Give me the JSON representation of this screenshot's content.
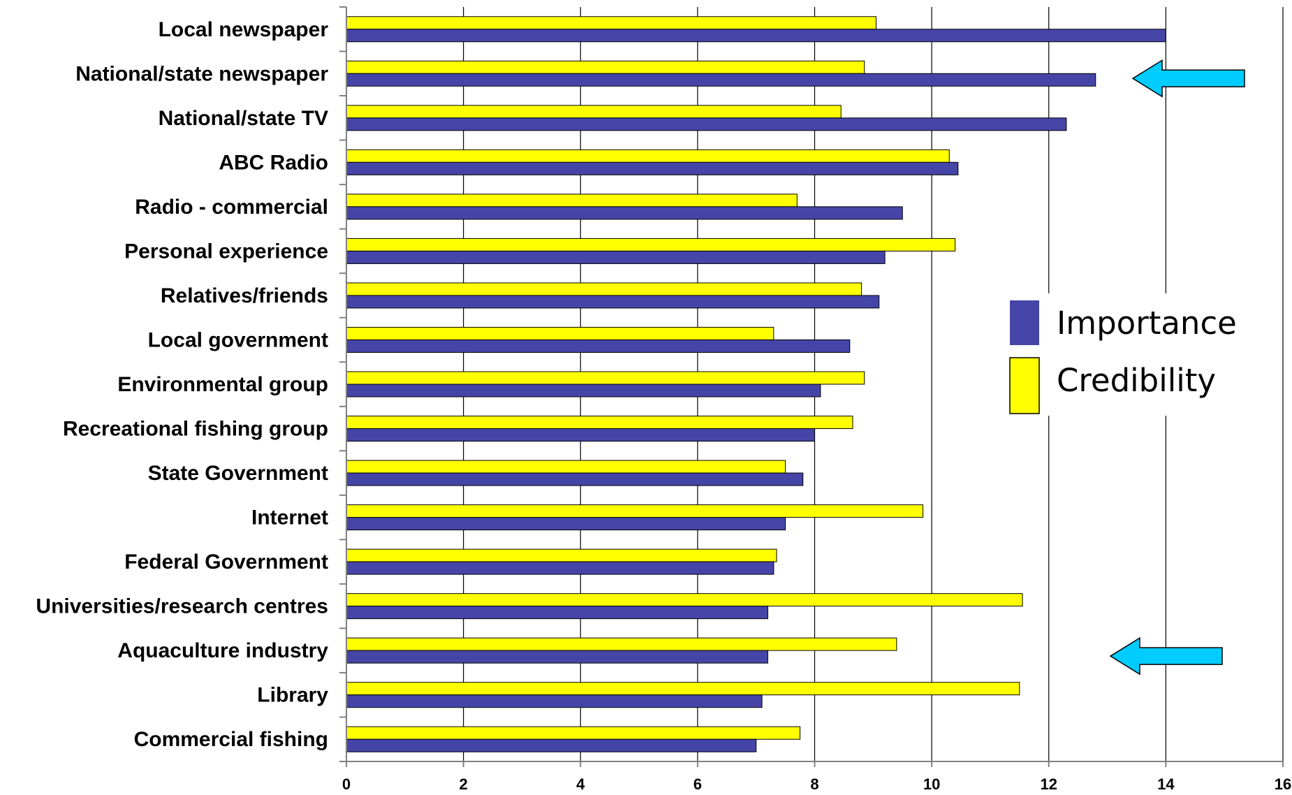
{
  "chart_data": {
    "type": "bar",
    "orientation": "horizontal",
    "title": "",
    "xlabel": "",
    "ylabel": "",
    "xlim": [
      0,
      16
    ],
    "x_ticks": [
      "0",
      "2",
      "4",
      "6",
      "8",
      "10",
      "12",
      "14",
      "16"
    ],
    "grid": "vertical",
    "legend_placement": "right-middle",
    "categories": [
      "Local newspaper",
      "National/state newspaper",
      "National/state TV",
      "ABC Radio",
      "Radio - commercial",
      "Personal experience",
      "Relatives/friends",
      "Local government",
      "Environmental group",
      "Recreational fishing group",
      "State Government",
      "Internet",
      "Federal Government",
      "Universities/research centres",
      "Aquaculture industry",
      "Library",
      "Commercial fishing"
    ],
    "series": [
      {
        "name": "Importance",
        "color": "#4545A8",
        "values": [
          14.0,
          12.8,
          12.3,
          10.45,
          9.5,
          9.2,
          9.1,
          8.6,
          8.1,
          8.0,
          7.8,
          7.5,
          7.3,
          7.2,
          7.2,
          7.1,
          7.0
        ]
      },
      {
        "name": "Credibility",
        "color": "#FFFF00",
        "values": [
          9.05,
          8.85,
          8.45,
          10.3,
          7.7,
          10.4,
          8.8,
          7.3,
          8.85,
          8.65,
          7.5,
          9.85,
          7.35,
          11.55,
          9.4,
          11.5,
          7.75
        ]
      }
    ],
    "annotations": [
      {
        "type": "arrow",
        "direction": "left",
        "color": "#00CCFF",
        "points_at": "National/state newspaper"
      },
      {
        "type": "arrow",
        "direction": "left",
        "color": "#00CCFF",
        "points_at": "Aquaculture industry"
      }
    ]
  }
}
